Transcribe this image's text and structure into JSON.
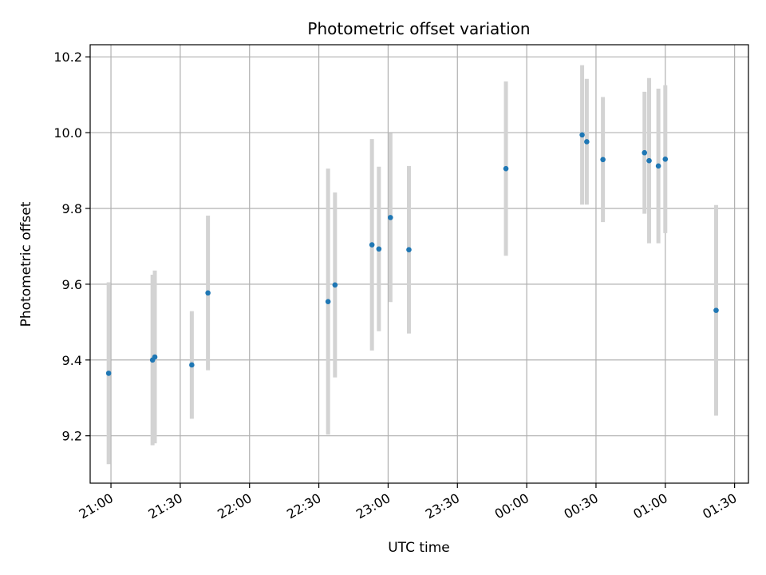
{
  "chart_data": {
    "type": "scatter",
    "title": "Photometric offset variation",
    "xlabel": "UTC time",
    "ylabel": "Photometric offset",
    "grid": true,
    "x_ticks": [
      "21:00",
      "21:30",
      "22:00",
      "22:30",
      "23:00",
      "23:30",
      "00:00",
      "00:30",
      "01:00",
      "01:30"
    ],
    "y_ticks": [
      "9.2",
      "9.4",
      "9.6",
      "9.8",
      "10.0",
      "10.2"
    ],
    "xlim": [
      "20:51",
      "01:36"
    ],
    "ylim": [
      9.075,
      10.232
    ],
    "colors": {
      "marker": "#1f77b4",
      "errorbar": "#d3d3d3",
      "grid": "#b0b0b0"
    },
    "points": [
      {
        "x": "20:59",
        "y": 9.365,
        "err_low": 9.125,
        "err_high": 9.605
      },
      {
        "x": "21:18",
        "y": 9.4,
        "err_low": 9.175,
        "err_high": 9.625
      },
      {
        "x": "21:19",
        "y": 9.408,
        "err_low": 9.18,
        "err_high": 9.636
      },
      {
        "x": "21:35",
        "y": 9.387,
        "err_low": 9.245,
        "err_high": 9.529
      },
      {
        "x": "21:42",
        "y": 9.577,
        "err_low": 9.373,
        "err_high": 9.781
      },
      {
        "x": "22:34",
        "y": 9.554,
        "err_low": 9.203,
        "err_high": 9.905
      },
      {
        "x": "22:37",
        "y": 9.598,
        "err_low": 9.354,
        "err_high": 9.842
      },
      {
        "x": "22:53",
        "y": 9.704,
        "err_low": 9.425,
        "err_high": 9.983
      },
      {
        "x": "22:56",
        "y": 9.693,
        "err_low": 9.476,
        "err_high": 9.91
      },
      {
        "x": "23:01",
        "y": 9.776,
        "err_low": 9.553,
        "err_high": 9.999
      },
      {
        "x": "23:09",
        "y": 9.691,
        "err_low": 9.47,
        "err_high": 9.912
      },
      {
        "x": "23:51",
        "y": 9.905,
        "err_low": 9.675,
        "err_high": 10.135
      },
      {
        "x": "00:24",
        "y": 9.994,
        "err_low": 9.81,
        "err_high": 10.178
      },
      {
        "x": "00:26",
        "y": 9.976,
        "err_low": 9.81,
        "err_high": 10.142
      },
      {
        "x": "00:33",
        "y": 9.929,
        "err_low": 9.764,
        "err_high": 10.094
      },
      {
        "x": "00:51",
        "y": 9.947,
        "err_low": 9.786,
        "err_high": 10.108
      },
      {
        "x": "00:53",
        "y": 9.926,
        "err_low": 9.708,
        "err_high": 10.144
      },
      {
        "x": "00:57",
        "y": 9.912,
        "err_low": 9.708,
        "err_high": 10.116
      },
      {
        "x": "01:00",
        "y": 9.93,
        "err_low": 9.735,
        "err_high": 10.125
      },
      {
        "x": "01:22",
        "y": 9.531,
        "err_low": 9.253,
        "err_high": 9.809
      }
    ]
  }
}
